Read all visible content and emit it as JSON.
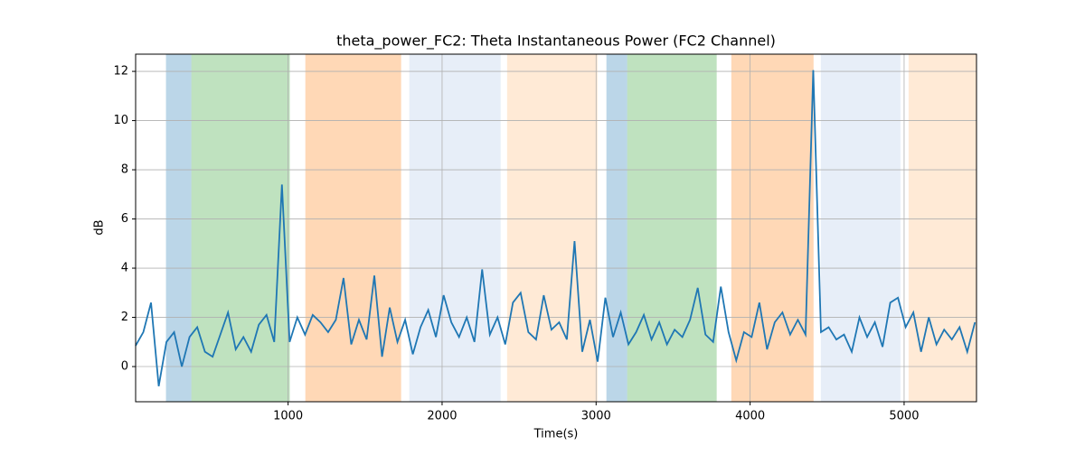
{
  "chart_data": {
    "type": "line",
    "title": "theta_power_FC2: Theta Instantaneous Power (FC2 Channel)",
    "xlabel": "Time(s)",
    "ylabel": "dB",
    "xlim": [
      10,
      5470
    ],
    "ylim": [
      -1.43,
      12.7
    ],
    "xticks": [
      1000,
      2000,
      3000,
      4000,
      5000
    ],
    "yticks": [
      0,
      2,
      4,
      6,
      8,
      10,
      12
    ],
    "grid": true,
    "spans": [
      {
        "x": [
          207,
          372
        ],
        "color": "#1f77b4"
      },
      {
        "x": [
          372,
          1011
        ],
        "color": "#2ca02c"
      },
      {
        "x": [
          1112,
          1734
        ],
        "color": "#ff7f0e"
      },
      {
        "x": [
          1787,
          2380
        ],
        "color": "#aec7e8"
      },
      {
        "x": [
          2422,
          3009
        ],
        "color": "#ffbb78"
      },
      {
        "x": [
          3067,
          3202
        ],
        "color": "#1f77b4"
      },
      {
        "x": [
          3202,
          3783
        ],
        "color": "#2ca02c"
      },
      {
        "x": [
          3878,
          4412
        ],
        "color": "#ff7f0e"
      },
      {
        "x": [
          4459,
          4976
        ],
        "color": "#aec7e8"
      },
      {
        "x": [
          5029,
          5470
        ],
        "color": "#ffbb78"
      }
    ],
    "x": [
      10,
      60,
      110,
      160,
      210,
      260,
      310,
      360,
      410,
      460,
      510,
      560,
      610,
      660,
      710,
      760,
      810,
      860,
      910,
      960,
      1010,
      1060,
      1110,
      1160,
      1210,
      1260,
      1310,
      1360,
      1410,
      1460,
      1510,
      1560,
      1610,
      1660,
      1710,
      1760,
      1810,
      1860,
      1910,
      1960,
      2010,
      2060,
      2110,
      2160,
      2210,
      2260,
      2310,
      2360,
      2410,
      2460,
      2510,
      2560,
      2610,
      2660,
      2710,
      2760,
      2810,
      2860,
      2910,
      2960,
      3010,
      3060,
      3110,
      3160,
      3210,
      3260,
      3310,
      3360,
      3410,
      3460,
      3510,
      3560,
      3610,
      3660,
      3710,
      3760,
      3810,
      3860,
      3910,
      3960,
      4010,
      4060,
      4110,
      4160,
      4210,
      4260,
      4310,
      4360,
      4410,
      4460,
      4510,
      4560,
      4610,
      4660,
      4710,
      4760,
      4810,
      4860,
      4910,
      4960,
      5010,
      5060,
      5110,
      5160,
      5210,
      5260,
      5310,
      5360,
      5410,
      5460
    ],
    "series": [
      {
        "color": "#1f77b4",
        "values": [
          0.85,
          1.4,
          2.6,
          -0.8,
          1.0,
          1.4,
          0.0,
          1.2,
          1.6,
          0.6,
          0.4,
          1.3,
          2.2,
          0.7,
          1.2,
          0.6,
          1.7,
          2.1,
          1.0,
          7.4,
          1.0,
          2.0,
          1.3,
          2.1,
          1.8,
          1.4,
          1.9,
          3.6,
          0.9,
          1.9,
          1.1,
          3.7,
          0.4,
          2.4,
          1.0,
          1.9,
          0.5,
          1.6,
          2.3,
          1.2,
          2.9,
          1.8,
          1.2,
          2.0,
          1.0,
          3.95,
          1.3,
          2.0,
          0.9,
          2.6,
          3.0,
          1.4,
          1.1,
          2.9,
          1.5,
          1.8,
          1.1,
          5.1,
          0.6,
          1.9,
          0.2,
          2.8,
          1.2,
          2.2,
          0.9,
          1.4,
          2.1,
          1.1,
          1.8,
          0.9,
          1.5,
          1.2,
          1.9,
          3.2,
          1.3,
          1.0,
          3.25,
          1.4,
          0.25,
          1.4,
          1.2,
          2.6,
          0.7,
          1.8,
          2.2,
          1.3,
          1.9,
          1.3,
          12.05,
          1.4,
          1.6,
          1.1,
          1.3,
          0.6,
          2.0,
          1.2,
          1.8,
          0.8,
          2.6,
          2.8,
          1.6,
          2.2,
          0.6,
          2.0,
          0.9,
          1.5,
          1.1,
          1.6,
          0.6,
          1.8
        ]
      }
    ]
  }
}
